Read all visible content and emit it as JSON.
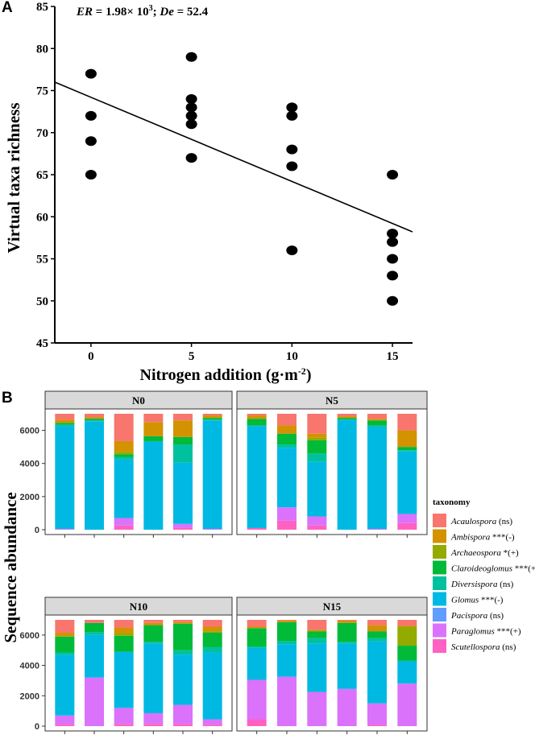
{
  "chart_data": [
    {
      "panel_label": "A",
      "type": "scatter",
      "annotation": {
        "er_label": "ER",
        "er_value": " = 1.98× 10",
        "er_exp": "3",
        "sep": "; ",
        "de_label": "De",
        "de_value": " = 52.4"
      },
      "xlabel": "Nitrogen addition (g·m",
      "xlabel_exp": "-2",
      "xlabel_close": ")",
      "ylabel": "Virtual taxa richness",
      "xlim": [
        -1.8,
        16.0
      ],
      "ylim": [
        45,
        85
      ],
      "x_ticks": [
        "0",
        "5",
        "10",
        "15"
      ],
      "y_ticks": [
        "45",
        "50",
        "55",
        "60",
        "65",
        "70",
        "75",
        "80",
        "85"
      ],
      "points": [
        {
          "x": 0,
          "y": 77
        },
        {
          "x": 0,
          "y": 72
        },
        {
          "x": 0,
          "y": 69
        },
        {
          "x": 0,
          "y": 65
        },
        {
          "x": 5,
          "y": 79
        },
        {
          "x": 5,
          "y": 74
        },
        {
          "x": 5,
          "y": 73
        },
        {
          "x": 5,
          "y": 72
        },
        {
          "x": 5,
          "y": 71
        },
        {
          "x": 5,
          "y": 67
        },
        {
          "x": 10,
          "y": 73
        },
        {
          "x": 10,
          "y": 72
        },
        {
          "x": 10,
          "y": 68
        },
        {
          "x": 10,
          "y": 66
        },
        {
          "x": 10,
          "y": 56
        },
        {
          "x": 15,
          "y": 65
        },
        {
          "x": 15,
          "y": 58
        },
        {
          "x": 15,
          "y": 57
        },
        {
          "x": 15,
          "y": 55
        },
        {
          "x": 15,
          "y": 53
        },
        {
          "x": 15,
          "y": 50
        }
      ],
      "fit_line": {
        "x": [
          -1.8,
          16.0
        ],
        "y": [
          76.0,
          58.2
        ]
      }
    },
    {
      "panel_label": "B",
      "type": "bar",
      "stacked": true,
      "ylabel": "Sequence abundance",
      "ylim": [
        0,
        7000
      ],
      "y_ticks": [
        "0",
        "2000",
        "4000",
        "6000"
      ],
      "legend": {
        "title": "taxonomy",
        "entries": [
          {
            "genus": "Acaulospora",
            "sig": " (ns)",
            "color": "#F8766D"
          },
          {
            "genus": "Ambispora",
            "sig": " ***(-)",
            "color": "#D39200"
          },
          {
            "genus": "Archaeospora",
            "sig": " *(+)",
            "color": "#93AA00"
          },
          {
            "genus": "Claroideoglomus",
            "sig": " ***(+)",
            "color": "#00BA38"
          },
          {
            "genus": "Diversispora",
            "sig": " (ns)",
            "color": "#00C19F"
          },
          {
            "genus": "Glomus",
            "sig": " ***(-)",
            "color": "#00B9E3"
          },
          {
            "genus": "Pacispora",
            "sig": " (ns)",
            "color": "#619CFF"
          },
          {
            "genus": "Paraglomus",
            "sig": " ***(+)",
            "color": "#DB72FB"
          },
          {
            "genus": "Scutellospora",
            "sig": " (ns)",
            "color": "#FF61C3"
          }
        ]
      },
      "stack_order_bottom_to_top": [
        "Scutellospora",
        "Paraglomus",
        "Pacispora",
        "Glomus",
        "Diversispora",
        "Claroideoglomus",
        "Archaeospora",
        "Ambispora",
        "Acaulospora"
      ],
      "facets": [
        {
          "name": "N0",
          "samples": [
            {
              "Scutellospora": 0,
              "Paraglomus": 50,
              "Pacispora": 0,
              "Glomus": 6200,
              "Diversispora": 100,
              "Claroideoglomus": 100,
              "Archaeospora": 0,
              "Ambispora": 200,
              "Acaulospora": 350
            },
            {
              "Scutellospora": 0,
              "Paraglomus": 0,
              "Pacispora": 0,
              "Glomus": 6550,
              "Diversispora": 50,
              "Claroideoglomus": 100,
              "Archaeospora": 0,
              "Ambispora": 100,
              "Acaulospora": 200
            },
            {
              "Scutellospora": 250,
              "Paraglomus": 450,
              "Pacispora": 0,
              "Glomus": 3550,
              "Diversispora": 150,
              "Claroideoglomus": 150,
              "Archaeospora": 150,
              "Ambispora": 650,
              "Acaulospora": 1650
            },
            {
              "Scutellospora": 0,
              "Paraglomus": 0,
              "Pacispora": 0,
              "Glomus": 5300,
              "Diversispora": 50,
              "Claroideoglomus": 300,
              "Archaeospora": 0,
              "Ambispora": 850,
              "Acaulospora": 500
            },
            {
              "Scutellospora": 100,
              "Paraglomus": 250,
              "Pacispora": 0,
              "Glomus": 3700,
              "Diversispora": 1100,
              "Claroideoglomus": 450,
              "Archaeospora": 0,
              "Ambispora": 1000,
              "Acaulospora": 400
            },
            {
              "Scutellospora": 0,
              "Paraglomus": 50,
              "Pacispora": 0,
              "Glomus": 6550,
              "Diversispora": 50,
              "Claroideoglomus": 100,
              "Archaeospora": 0,
              "Ambispora": 150,
              "Acaulospora": 100
            }
          ]
        },
        {
          "name": "N5",
          "samples": [
            {
              "Scutellospora": 100,
              "Paraglomus": 0,
              "Pacispora": 0,
              "Glomus": 6150,
              "Diversispora": 50,
              "Claroideoglomus": 400,
              "Archaeospora": 0,
              "Ambispora": 200,
              "Acaulospora": 100
            },
            {
              "Scutellospora": 550,
              "Paraglomus": 800,
              "Pacispora": 0,
              "Glomus": 3600,
              "Diversispora": 200,
              "Claroideoglomus": 650,
              "Archaeospora": 0,
              "Ambispora": 500,
              "Acaulospora": 700
            },
            {
              "Scutellospora": 250,
              "Paraglomus": 550,
              "Pacispora": 0,
              "Glomus": 3300,
              "Diversispora": 500,
              "Claroideoglomus": 800,
              "Archaeospora": 150,
              "Ambispora": 250,
              "Acaulospora": 1200
            },
            {
              "Scutellospora": 0,
              "Paraglomus": 0,
              "Pacispora": 0,
              "Glomus": 6650,
              "Diversispora": 0,
              "Claroideoglomus": 100,
              "Archaeospora": 0,
              "Ambispora": 100,
              "Acaulospora": 150
            },
            {
              "Scutellospora": 0,
              "Paraglomus": 50,
              "Pacispora": 0,
              "Glomus": 6150,
              "Diversispora": 100,
              "Claroideoglomus": 300,
              "Archaeospora": 0,
              "Ambispora": 100,
              "Acaulospora": 300
            },
            {
              "Scutellospora": 400,
              "Paraglomus": 550,
              "Pacispora": 0,
              "Glomus": 3800,
              "Diversispora": 50,
              "Claroideoglomus": 200,
              "Archaeospora": 0,
              "Ambispora": 1000,
              "Acaulospora": 1000
            }
          ]
        },
        {
          "name": "N10",
          "samples": [
            {
              "Scutellospora": 100,
              "Paraglomus": 600,
              "Pacispora": 0,
              "Glomus": 4000,
              "Diversispora": 150,
              "Claroideoglomus": 1050,
              "Archaeospora": 0,
              "Ambispora": 250,
              "Acaulospora": 850
            },
            {
              "Scutellospora": 0,
              "Paraglomus": 3200,
              "Pacispora": 0,
              "Glomus": 2800,
              "Diversispora": 200,
              "Claroideoglomus": 600,
              "Archaeospora": 0,
              "Ambispora": 0,
              "Acaulospora": 200
            },
            {
              "Scutellospora": 150,
              "Paraglomus": 1050,
              "Pacispora": 0,
              "Glomus": 3700,
              "Diversispora": 0,
              "Claroideoglomus": 1050,
              "Archaeospora": 150,
              "Ambispora": 400,
              "Acaulospora": 500
            },
            {
              "Scutellospora": 150,
              "Paraglomus": 700,
              "Pacispora": 0,
              "Glomus": 4600,
              "Diversispora": 100,
              "Claroideoglomus": 1100,
              "Archaeospora": 0,
              "Ambispora": 150,
              "Acaulospora": 200
            },
            {
              "Scutellospora": 150,
              "Paraglomus": 1250,
              "Pacispora": 0,
              "Glomus": 3300,
              "Diversispora": 300,
              "Claroideoglomus": 1750,
              "Archaeospora": 0,
              "Ambispora": 100,
              "Acaulospora": 150
            },
            {
              "Scutellospora": 100,
              "Paraglomus": 350,
              "Pacispora": 0,
              "Glomus": 4400,
              "Diversispora": 350,
              "Claroideoglomus": 950,
              "Archaeospora": 100,
              "Ambispora": 300,
              "Acaulospora": 450
            }
          ]
        },
        {
          "name": "N15",
          "samples": [
            {
              "Scutellospora": 450,
              "Paraglomus": 2600,
              "Pacispora": 0,
              "Glomus": 2100,
              "Diversispora": 100,
              "Claroideoglomus": 1200,
              "Archaeospora": 0,
              "Ambispora": 100,
              "Acaulospora": 450
            },
            {
              "Scutellospora": 0,
              "Paraglomus": 3250,
              "Pacispora": 0,
              "Glomus": 2150,
              "Diversispora": 200,
              "Claroideoglomus": 1250,
              "Archaeospora": 0,
              "Ambispora": 100,
              "Acaulospora": 50
            },
            {
              "Scutellospora": 0,
              "Paraglomus": 2250,
              "Pacispora": 0,
              "Glomus": 3200,
              "Diversispora": 350,
              "Claroideoglomus": 450,
              "Archaeospora": 0,
              "Ambispora": 100,
              "Acaulospora": 650
            },
            {
              "Scutellospora": 0,
              "Paraglomus": 2450,
              "Pacispora": 0,
              "Glomus": 3000,
              "Diversispora": 100,
              "Claroideoglomus": 1250,
              "Archaeospora": 0,
              "Ambispora": 150,
              "Acaulospora": 50
            },
            {
              "Scutellospora": 100,
              "Paraglomus": 1400,
              "Pacispora": 0,
              "Glomus": 4100,
              "Diversispora": 200,
              "Claroideoglomus": 450,
              "Archaeospora": 0,
              "Ambispora": 400,
              "Acaulospora": 350
            },
            {
              "Scutellospora": 0,
              "Paraglomus": 2800,
              "Pacispora": 0,
              "Glomus": 1500,
              "Diversispora": 0,
              "Claroideoglomus": 1000,
              "Archaeospora": 1250,
              "Ambispora": 50,
              "Acaulospora": 400
            }
          ]
        }
      ]
    }
  ]
}
